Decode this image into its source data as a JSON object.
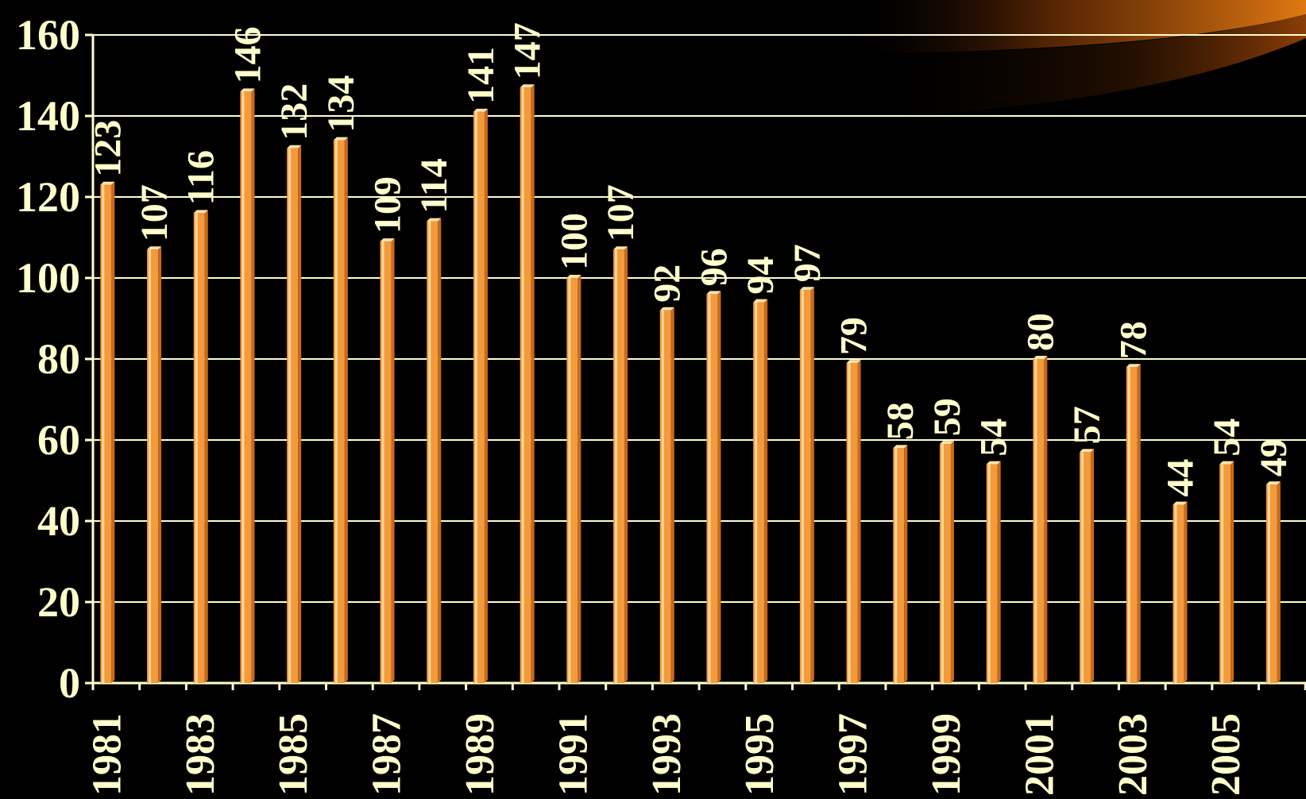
{
  "chart_data": {
    "type": "bar",
    "title": "",
    "xlabel": "",
    "ylabel": "",
    "ylim": [
      0,
      160
    ],
    "y_ticks": [
      "0",
      "20",
      "40",
      "60",
      "80",
      "100",
      "120",
      "140",
      "160"
    ],
    "grid": true,
    "x_tick_labels": [
      "1981",
      "1983",
      "1985",
      "1987",
      "1989",
      "1991",
      "1993",
      "1995",
      "1997",
      "1999",
      "2001",
      "2003",
      "2005"
    ],
    "categories": [
      "1981",
      "1982",
      "1983",
      "1984",
      "1985",
      "1986",
      "1987",
      "1988",
      "1989",
      "1990",
      "1991",
      "1992",
      "1993",
      "1994",
      "1995",
      "1996",
      "1997",
      "1998",
      "1999",
      "2000",
      "2001",
      "2002",
      "2003",
      "2004",
      "2005",
      "2006"
    ],
    "values": [
      123,
      107,
      116,
      146,
      132,
      134,
      109,
      114,
      141,
      147,
      100,
      107,
      92,
      96,
      94,
      97,
      79,
      58,
      59,
      54,
      80,
      57,
      78,
      44,
      54,
      49
    ],
    "data_labels": [
      "123",
      "107",
      "116",
      "146",
      "132",
      "134",
      "109",
      "114",
      "141",
      "147",
      "100",
      "107",
      "92",
      "96",
      "94",
      "97",
      "79",
      "58",
      "59",
      "54",
      "80",
      "57",
      "78",
      "44",
      "54",
      "49"
    ],
    "colors": {
      "background": "#000000",
      "bar": "#F39A3C",
      "bar_highlight": "#FFE2A8",
      "bar_shadow": "#C96A1A",
      "text": "#FFFFCC",
      "grid": "#FFFFCC",
      "accent_swoosh": "#B85A0E"
    }
  }
}
